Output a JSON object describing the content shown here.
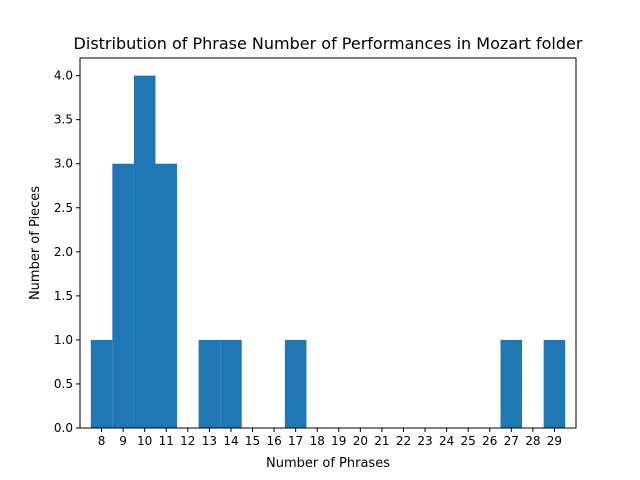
{
  "chart_data": {
    "type": "bar",
    "title": "Distribution of Phrase Number of Performances in Mozart folder",
    "xlabel": "Number of Phrases",
    "ylabel": "Number of Pieces",
    "categories": [
      "8",
      "9",
      "10",
      "11",
      "12",
      "13",
      "14",
      "15",
      "16",
      "17",
      "18",
      "19",
      "20",
      "21",
      "22",
      "23",
      "24",
      "25",
      "26",
      "27",
      "28",
      "29"
    ],
    "values": [
      1,
      3,
      4,
      3,
      0,
      1,
      1,
      0,
      0,
      1,
      0,
      0,
      0,
      0,
      0,
      0,
      0,
      0,
      0,
      1,
      0,
      1
    ],
    "xlim": [
      7.0,
      30.0
    ],
    "ylim": [
      0,
      4.2
    ],
    "y_ticks": [
      "0.0",
      "0.5",
      "1.0",
      "1.5",
      "2.0",
      "2.5",
      "3.0",
      "3.5",
      "4.0"
    ],
    "bar_color": "#1f77b4",
    "grid": false
  }
}
